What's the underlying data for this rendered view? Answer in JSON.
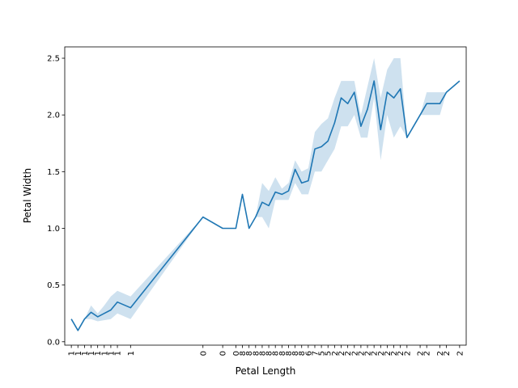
{
  "chart_data": {
    "type": "line",
    "title": "",
    "xlabel": "Petal Length",
    "ylabel": "Petal Width",
    "ylim": [
      0,
      2.55
    ],
    "yticks": [
      "0.0",
      "0.5",
      "1.0",
      "1.5",
      "2.0",
      "2.5"
    ],
    "x": [
      1.0,
      1.1,
      1.2,
      1.3,
      1.4,
      1.5,
      1.6,
      1.7,
      1.9,
      3.0,
      3.3,
      3.5,
      3.6,
      3.7,
      3.8,
      3.9,
      4.0,
      4.1,
      4.2,
      4.3,
      4.4,
      4.5,
      4.6,
      4.7,
      4.8,
      4.9,
      5.0,
      5.1,
      5.2,
      5.3,
      5.4,
      5.5,
      5.6,
      5.7,
      5.8,
      5.9,
      6.0,
      6.1,
      6.3,
      6.4,
      6.6,
      6.7,
      6.9
    ],
    "xtick_labels": [
      "1",
      "1",
      "1",
      "1",
      "1",
      "1",
      "1",
      "1",
      "1",
      "0",
      "0",
      "0",
      "8",
      "8",
      "8",
      "8",
      "8",
      "8",
      "8",
      "8",
      "8",
      "8",
      "6",
      "7",
      "5",
      "5",
      "2",
      "2",
      "2",
      "2",
      "2",
      "2",
      "2",
      "2",
      "2",
      "2",
      "2",
      "2",
      "2",
      "2",
      "2",
      "2",
      "2"
    ],
    "series": [
      {
        "name": "",
        "color": "#1f77b4",
        "values": [
          0.2,
          0.1,
          0.2,
          0.26,
          0.22,
          0.25,
          0.28,
          0.35,
          0.3,
          1.1,
          1.0,
          1.0,
          1.3,
          1.0,
          1.1,
          1.23,
          1.2,
          1.32,
          1.3,
          1.33,
          1.52,
          1.4,
          1.42,
          1.7,
          1.72,
          1.77,
          1.93,
          2.15,
          2.1,
          2.2,
          1.9,
          2.05,
          2.3,
          1.87,
          2.2,
          2.15,
          2.23,
          1.8,
          2.0,
          2.1,
          2.1,
          2.2,
          2.3
        ],
        "ci_lower": [
          0.2,
          0.1,
          0.2,
          0.2,
          0.18,
          0.19,
          0.2,
          0.25,
          0.2,
          1.1,
          1.0,
          1.0,
          1.3,
          1.0,
          1.1,
          1.1,
          1.0,
          1.25,
          1.25,
          1.25,
          1.4,
          1.3,
          1.3,
          1.5,
          1.5,
          1.6,
          1.7,
          1.9,
          1.9,
          2.0,
          1.8,
          1.8,
          2.15,
          1.6,
          2.0,
          1.8,
          1.9,
          1.8,
          2.0,
          2.0,
          2.0,
          2.2,
          2.3
        ],
        "ci_upper": [
          0.2,
          0.1,
          0.2,
          0.32,
          0.25,
          0.32,
          0.4,
          0.45,
          0.4,
          1.1,
          1.0,
          1.0,
          1.3,
          1.0,
          1.1,
          1.4,
          1.33,
          1.45,
          1.35,
          1.4,
          1.6,
          1.5,
          1.53,
          1.85,
          1.92,
          1.97,
          2.15,
          2.3,
          2.3,
          2.3,
          2.0,
          2.25,
          2.5,
          2.15,
          2.4,
          2.5,
          2.5,
          1.8,
          2.0,
          2.2,
          2.2,
          2.2,
          2.3
        ]
      }
    ],
    "grid": false,
    "legend": "none"
  }
}
